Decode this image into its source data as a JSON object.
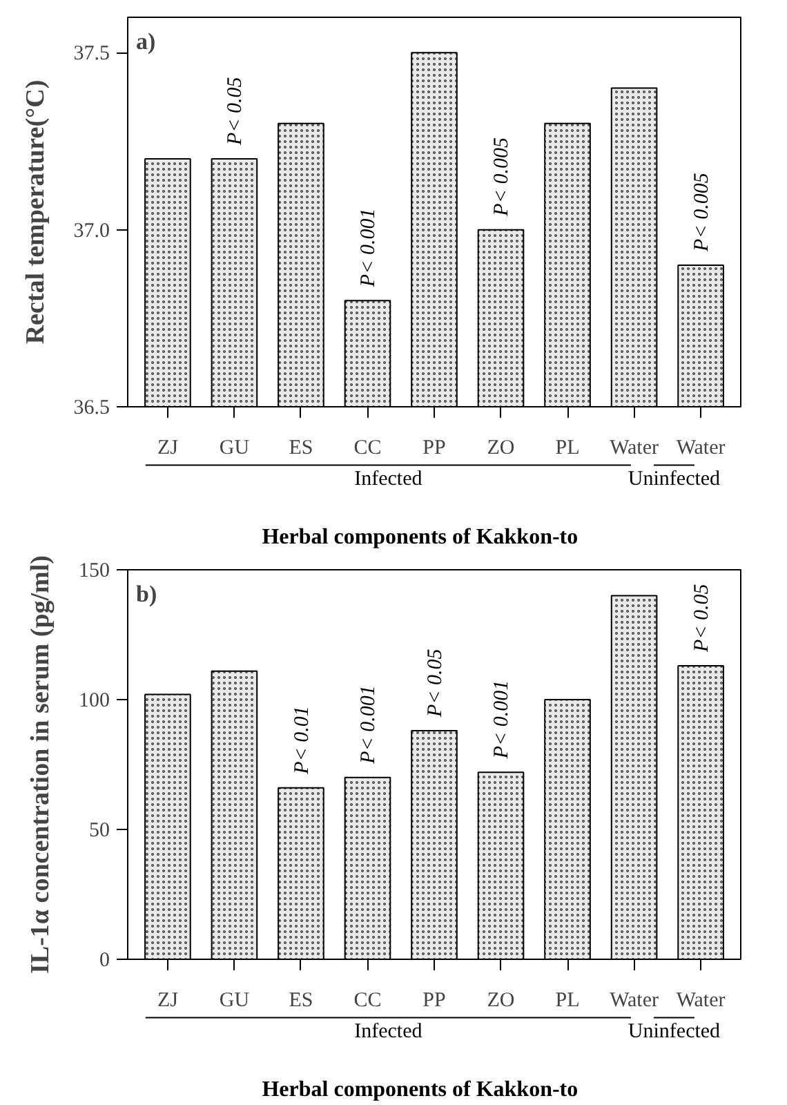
{
  "chart_data": [
    {
      "type": "bar",
      "title": "a)",
      "xlabel": "Herbal components of Kakkon-to",
      "ylabel": "Rectal temperature(°C)",
      "categories": [
        "ZJ",
        "GU",
        "ES",
        "CC",
        "PP",
        "ZO",
        "PL",
        "Water",
        "Water"
      ],
      "values": [
        37.2,
        37.2,
        37.3,
        36.8,
        37.5,
        37.0,
        37.3,
        37.4,
        36.9
      ],
      "color": "#e8e8e8",
      "ylim": [
        36.5,
        37.6
      ],
      "yticks": [
        36.5,
        {
          "value": 37.0,
          "label": "37.0"
        },
        37.5
      ],
      "grid": false,
      "annotations": [
        {
          "text": "P< 0.05",
          "x": "GU",
          "y": 37.2
        },
        {
          "text": "P< 0.001",
          "x": "CC",
          "y": 36.8
        },
        {
          "text": "P< 0.005",
          "x": "ZO",
          "y": 37.0
        },
        "P< 0.005",
        "Infected",
        "Uninfected"
      ]
    },
    {
      "type": "bar",
      "title": "b)",
      "xlabel": "Herbal components of Kakkon-to",
      "ylabel": "IL-1α concentration in serum (pg/ml)",
      "categories": [
        "ZJ",
        "GU",
        "ES",
        "CC",
        "PP",
        "ZO",
        "PL",
        "Water",
        "Water"
      ],
      "values": [
        102,
        111,
        66,
        70,
        88,
        72,
        100,
        140,
        113
      ],
      "color": "#e8e8e8",
      "ylim": [
        0,
        150
      ],
      "yticks": [
        0,
        50,
        100,
        150
      ],
      "grid": false,
      "annotations": [
        {
          "text": "P< 0.01",
          "x": "ES",
          "y": 66
        },
        {
          "text": "P< 0.001",
          "x": "CC",
          "y": 70
        },
        {
          "text": "P< 0.05",
          "x": "PP",
          "y": 88
        },
        {
          "text": "P< 0.001",
          "x": "ZO",
          "y": 72
        },
        "P< 0.05",
        "Infected",
        "Uninfected"
      ]
    }
  ]
}
